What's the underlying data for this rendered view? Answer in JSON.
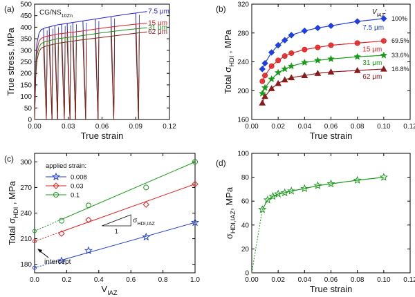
{
  "chart_data": [
    {
      "id": "a",
      "type": "line",
      "panel_label": "(a)",
      "title": "CG/NS",
      "title_sub": "10Zn",
      "xlabel": "True strain",
      "ylabel": "True stress, MPa",
      "xlim": [
        0,
        0.12
      ],
      "ylim": [
        0,
        500
      ],
      "xticks": [
        0,
        0.03,
        0.06,
        0.09,
        0.12
      ],
      "xtick_labels": [
        "0.00",
        "0.03",
        "0.06",
        "0.09",
        "0.12"
      ],
      "yticks": [
        0,
        50,
        100,
        150,
        200,
        250,
        300,
        350,
        400,
        450,
        500
      ],
      "ytick_labels": [
        "0",
        "50",
        "100",
        "150",
        "200",
        "250",
        "300",
        "350",
        "400",
        "450",
        "500"
      ],
      "unload_strains": [
        0.008,
        0.013,
        0.018,
        0.024,
        0.029,
        0.034,
        0.043,
        0.054,
        0.068,
        0.09
      ],
      "series": [
        {
          "name": "7.5 μm",
          "color": "#1f1fd0",
          "label_value": 468,
          "x": [
            0,
            0.001,
            0.002,
            0.004,
            0.006,
            0.01,
            0.02,
            0.04,
            0.06,
            0.08,
            0.1
          ],
          "y": [
            0,
            240,
            330,
            375,
            390,
            398,
            410,
            425,
            440,
            455,
            468
          ]
        },
        {
          "name": "15 μm",
          "color": "#d02020",
          "label_value": 418,
          "x": [
            0,
            0.001,
            0.002,
            0.004,
            0.006,
            0.01,
            0.02,
            0.04,
            0.06,
            0.08,
            0.1
          ],
          "y": [
            0,
            220,
            300,
            340,
            352,
            360,
            370,
            382,
            396,
            408,
            418
          ]
        },
        {
          "name": "31 μm",
          "color": "#1a8a1a",
          "label_value": 398,
          "x": [
            0,
            0.001,
            0.002,
            0.004,
            0.006,
            0.01,
            0.02,
            0.04,
            0.06,
            0.08,
            0.1
          ],
          "y": [
            0,
            200,
            280,
            315,
            330,
            338,
            350,
            362,
            376,
            388,
            398
          ]
        },
        {
          "name": "62 μm",
          "color": "#8b1a1a",
          "label_value": 380,
          "x": [
            0,
            0.001,
            0.002,
            0.004,
            0.006,
            0.01,
            0.02,
            0.04,
            0.06,
            0.08,
            0.1
          ],
          "y": [
            0,
            180,
            255,
            295,
            310,
            318,
            330,
            344,
            356,
            368,
            380
          ]
        }
      ]
    },
    {
      "id": "b",
      "type": "line",
      "panel_label": "(b)",
      "xlabel": "True strain",
      "ylabel_main": "Total σ",
      "ylabel_sub": "HDI",
      "ylabel_unit": " , MPa",
      "xlim": [
        0,
        0.12
      ],
      "ylim": [
        160,
        320
      ],
      "xticks": [
        0,
        0.02,
        0.04,
        0.06,
        0.08,
        0.1,
        0.12
      ],
      "xtick_labels": [
        "0.00",
        "0.02",
        "0.04",
        "0.06",
        "0.08",
        "0.10",
        "0.12"
      ],
      "yticks": [
        160,
        200,
        240,
        280,
        320
      ],
      "ytick_labels": [
        "160",
        "200",
        "240",
        "280",
        "320"
      ],
      "legend_header_main": "V",
      "legend_header_sub": "IAZ",
      "legend_header_tail": ":",
      "series": [
        {
          "name": "7.5 μm",
          "percent": "100%",
          "color": "#1f3fe0",
          "marker": "diamond",
          "x": [
            0.008,
            0.01,
            0.015,
            0.02,
            0.025,
            0.03,
            0.04,
            0.05,
            0.06,
            0.08,
            0.1
          ],
          "y": [
            230,
            238,
            253,
            263,
            270,
            277,
            283,
            287,
            290,
            296,
            300
          ]
        },
        {
          "name": "15 μm",
          "percent": "69.5%",
          "color": "#e02020",
          "marker": "circle",
          "x": [
            0.008,
            0.01,
            0.015,
            0.02,
            0.025,
            0.03,
            0.04,
            0.05,
            0.06,
            0.08,
            0.1
          ],
          "y": [
            213,
            221,
            234,
            242,
            248,
            252,
            257,
            260,
            263,
            266,
            269
          ]
        },
        {
          "name": "31 μm",
          "percent": "33.6%",
          "color": "#1a9a1a",
          "marker": "star",
          "x": [
            0.008,
            0.01,
            0.015,
            0.02,
            0.025,
            0.03,
            0.04,
            0.05,
            0.06,
            0.08,
            0.1
          ],
          "y": [
            196,
            204,
            216,
            225,
            230,
            234,
            239,
            242,
            244,
            247,
            249
          ]
        },
        {
          "name": "62 μm",
          "percent": "16.8%",
          "color": "#8b1a1a",
          "marker": "triangle",
          "x": [
            0.008,
            0.01,
            0.015,
            0.02,
            0.025,
            0.03,
            0.04,
            0.05,
            0.06,
            0.08,
            0.1
          ],
          "y": [
            183,
            192,
            203,
            210,
            215,
            218,
            221,
            224,
            226,
            228,
            230
          ]
        }
      ]
    },
    {
      "id": "c",
      "type": "scatter",
      "panel_label": "(c)",
      "xlabel_main": "V",
      "xlabel_sub": "IAZ",
      "ylabel_main": "Total σ",
      "ylabel_sub": "HDI",
      "ylabel_unit": " , MPa",
      "xlim": [
        0,
        1.0
      ],
      "ylim": [
        170,
        310
      ],
      "xticks": [
        0,
        0.2,
        0.4,
        0.6,
        0.8,
        1.0
      ],
      "xtick_labels": [
        "0.0",
        "0.2",
        "0.4",
        "0.6",
        "0.8",
        "1.0"
      ],
      "yticks": [
        180,
        210,
        240,
        270,
        300
      ],
      "ytick_labels": [
        "180",
        "210",
        "240",
        "270",
        "300"
      ],
      "legend_title": "applied strain:",
      "slope_label_main": "σ",
      "slope_label_sub": "HDI,IAZ",
      "slope_run": "1",
      "intercept_label": "intercept",
      "series": [
        {
          "name": "0.008",
          "color": "#1f3fd0",
          "marker": "star",
          "x": [
            0.168,
            0.336,
            0.695,
            1.0
          ],
          "y": [
            184,
            196,
            212,
            229
          ],
          "fit": [
            176,
            229
          ]
        },
        {
          "name": "0.03",
          "color": "#e02020",
          "marker": "diamond",
          "x": [
            0.168,
            0.336,
            0.695,
            1.0
          ],
          "y": [
            216,
            232,
            250,
            274
          ],
          "fit": [
            207,
            274
          ]
        },
        {
          "name": "0.1",
          "color": "#1a9a1a",
          "marker": "circle",
          "x": [
            0.168,
            0.336,
            0.695,
            1.0
          ],
          "y": [
            231,
            249,
            270,
            300
          ],
          "fit": [
            219,
            300
          ]
        }
      ]
    },
    {
      "id": "d",
      "type": "line",
      "panel_label": "(d)",
      "xlabel": "True strain",
      "ylabel_main": "σ",
      "ylabel_sub": "HDI,IAZ",
      "ylabel_unit": ", MPa",
      "xlim": [
        0,
        0.12
      ],
      "ylim": [
        0,
        100
      ],
      "xticks": [
        0,
        0.02,
        0.04,
        0.06,
        0.08,
        0.1,
        0.12
      ],
      "xtick_labels": [
        "0.00",
        "0.02",
        "0.04",
        "0.06",
        "0.08",
        "0.10",
        "0.12"
      ],
      "yticks": [
        0,
        20,
        40,
        60,
        80,
        100
      ],
      "ytick_labels": [
        "0",
        "20",
        "40",
        "60",
        "80",
        "100"
      ],
      "series": [
        {
          "name": "σHDI,IAZ",
          "color": "#1a9a1a",
          "marker": "star",
          "x": [
            0.008,
            0.012,
            0.016,
            0.02,
            0.025,
            0.03,
            0.04,
            0.05,
            0.06,
            0.08,
            0.1
          ],
          "y": [
            53,
            61,
            64,
            66,
            67,
            68.5,
            70.5,
            73,
            74.5,
            77.5,
            80
          ]
        }
      ]
    }
  ]
}
